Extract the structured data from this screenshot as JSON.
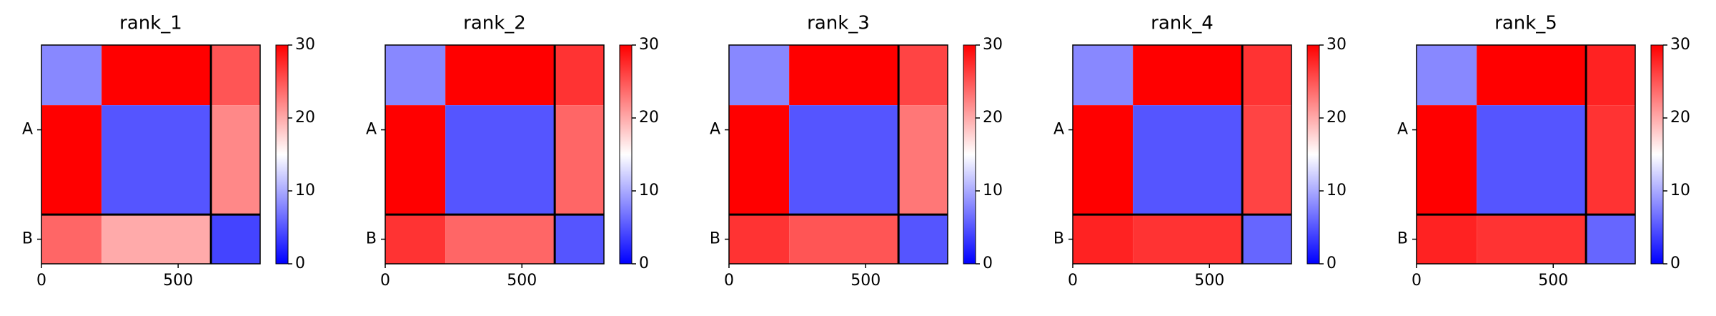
{
  "chart_data": [
    {
      "type": "heatmap",
      "title": "rank_1",
      "xbins": [
        0,
        220,
        620,
        800
      ],
      "ybins": [
        0,
        220,
        620,
        800
      ],
      "values": [
        [
          8,
          30,
          25
        ],
        [
          30,
          5,
          22
        ],
        [
          24,
          20,
          4
        ]
      ],
      "xlim": [
        0,
        800
      ],
      "ylim": [
        800,
        0
      ],
      "xticks": [
        0,
        500
      ],
      "yticks": [
        {
          "value": 310,
          "label": "A"
        },
        {
          "value": 710,
          "label": "B"
        }
      ],
      "chain_breaks": [
        620
      ],
      "clim": [
        0,
        30
      ],
      "cticks": [
        0,
        10,
        20,
        30
      ],
      "colormap": [
        "#0000ff",
        "#ffffff",
        "#ff0000"
      ]
    },
    {
      "type": "heatmap",
      "title": "rank_2",
      "xbins": [
        0,
        220,
        620,
        800
      ],
      "ybins": [
        0,
        220,
        620,
        800
      ],
      "values": [
        [
          8,
          30,
          27
        ],
        [
          30,
          5,
          24
        ],
        [
          27,
          24,
          5
        ]
      ],
      "xlim": [
        0,
        800
      ],
      "ylim": [
        800,
        0
      ],
      "xticks": [
        0,
        500
      ],
      "yticks": [
        {
          "value": 310,
          "label": "A"
        },
        {
          "value": 710,
          "label": "B"
        }
      ],
      "chain_breaks": [
        620
      ],
      "clim": [
        0,
        30
      ],
      "cticks": [
        0,
        10,
        20,
        30
      ],
      "colormap": [
        "#0000ff",
        "#ffffff",
        "#ff0000"
      ]
    },
    {
      "type": "heatmap",
      "title": "rank_3",
      "xbins": [
        0,
        220,
        620,
        800
      ],
      "ybins": [
        0,
        220,
        620,
        800
      ],
      "values": [
        [
          8,
          30,
          26
        ],
        [
          30,
          5,
          23
        ],
        [
          27,
          25,
          5
        ]
      ],
      "xlim": [
        0,
        800
      ],
      "ylim": [
        800,
        0
      ],
      "xticks": [
        0,
        500
      ],
      "yticks": [
        {
          "value": 310,
          "label": "A"
        },
        {
          "value": 710,
          "label": "B"
        }
      ],
      "chain_breaks": [
        620
      ],
      "clim": [
        0,
        30
      ],
      "cticks": [
        0,
        10,
        20,
        30
      ],
      "colormap": [
        "#0000ff",
        "#ffffff",
        "#ff0000"
      ]
    },
    {
      "type": "heatmap",
      "title": "rank_4",
      "xbins": [
        0,
        220,
        620,
        800
      ],
      "ybins": [
        0,
        220,
        620,
        800
      ],
      "values": [
        [
          8,
          30,
          27
        ],
        [
          30,
          5,
          26
        ],
        [
          28,
          27,
          6
        ]
      ],
      "xlim": [
        0,
        800
      ],
      "ylim": [
        800,
        0
      ],
      "xticks": [
        0,
        500
      ],
      "yticks": [
        {
          "value": 310,
          "label": "A"
        },
        {
          "value": 710,
          "label": "B"
        }
      ],
      "chain_breaks": [
        620
      ],
      "clim": [
        0,
        30
      ],
      "cticks": [
        0,
        10,
        20,
        30
      ],
      "colormap": [
        "#0000ff",
        "#ffffff",
        "#ff0000"
      ]
    },
    {
      "type": "heatmap",
      "title": "rank_5",
      "xbins": [
        0,
        220,
        620,
        800
      ],
      "ybins": [
        0,
        220,
        620,
        800
      ],
      "values": [
        [
          8,
          30,
          28
        ],
        [
          30,
          5,
          27
        ],
        [
          28,
          27,
          6
        ]
      ],
      "xlim": [
        0,
        800
      ],
      "ylim": [
        800,
        0
      ],
      "xticks": [
        0,
        500
      ],
      "yticks": [
        {
          "value": 310,
          "label": "A"
        },
        {
          "value": 710,
          "label": "B"
        }
      ],
      "chain_breaks": [
        620
      ],
      "clim": [
        0,
        30
      ],
      "cticks": [
        0,
        10,
        20,
        30
      ],
      "colormap": [
        "#0000ff",
        "#ffffff",
        "#ff0000"
      ]
    }
  ]
}
